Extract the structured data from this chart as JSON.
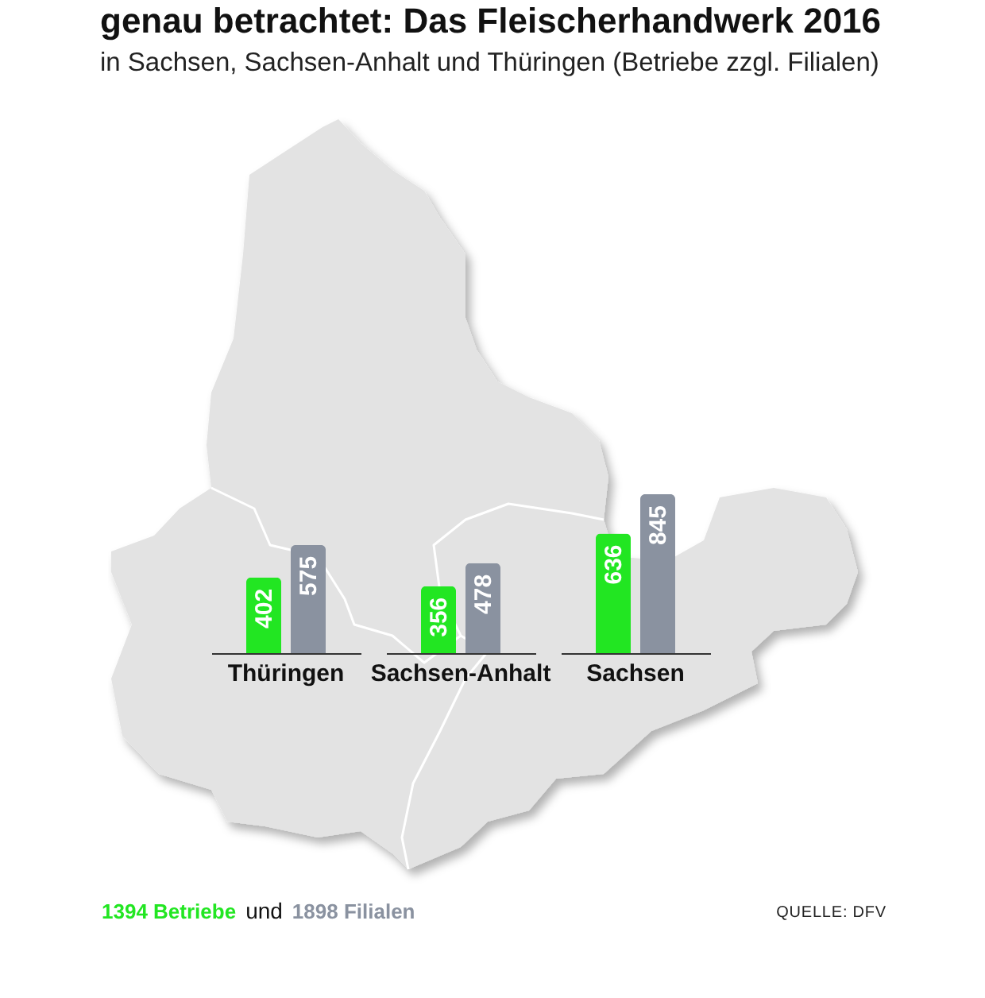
{
  "chart_data": {
    "type": "bar",
    "title": "genau betrachtet: Das Fleischerhandwerk 2016",
    "subtitle": "in Sachsen, Sachsen-Anhalt und Thüringen (Betriebe zzgl. Filialen)",
    "categories": [
      "Thüringen",
      "Sachsen-Anhalt",
      "Sachsen"
    ],
    "series": [
      {
        "name": "1394 Betriebe",
        "color": "#22e622",
        "values": [
          402,
          356,
          636
        ]
      },
      {
        "name": "1898 Filialen",
        "color": "#8a92a0",
        "values": [
          575,
          478,
          845
        ]
      }
    ],
    "data_labels": true,
    "legend": "bottom left",
    "tick_labels": "x",
    "annotations": [
      "und",
      "QUELLE: DFV"
    ]
  }
}
